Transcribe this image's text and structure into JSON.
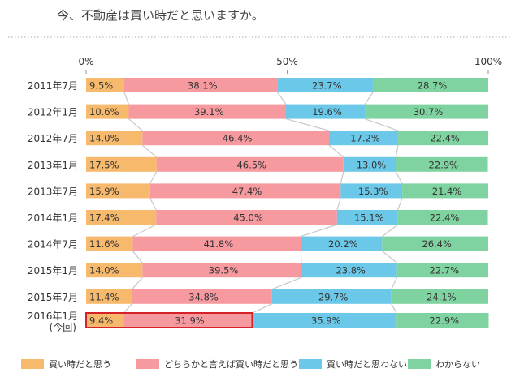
{
  "chart_data": {
    "type": "bar",
    "orientation": "horizontal",
    "stacked": true,
    "title": "今、不動産は買い時だと思いますか。",
    "xlim": [
      0,
      100
    ],
    "ticks": [
      "0%",
      "50%",
      "100%"
    ],
    "tick_values": [
      0,
      50,
      100
    ],
    "categories": [
      [
        "2011年7月"
      ],
      [
        "2012年1月"
      ],
      [
        "2012年7月"
      ],
      [
        "2013年1月"
      ],
      [
        "2013年7月"
      ],
      [
        "2014年1月"
      ],
      [
        "2014年7月"
      ],
      [
        "2015年1月"
      ],
      [
        "2015年7月"
      ],
      [
        "2016年1月",
        "(今回)"
      ]
    ],
    "series": [
      {
        "name": "買い時だと思う",
        "color": "#f7b96b",
        "values": [
          9.5,
          10.6,
          14.0,
          17.5,
          15.9,
          17.4,
          11.6,
          14.0,
          11.4,
          9.4
        ]
      },
      {
        "name": "どちらかと言えば買い時だと思う",
        "color": "#f79aa0",
        "values": [
          38.1,
          39.1,
          46.4,
          46.5,
          47.4,
          45.0,
          41.8,
          39.5,
          34.8,
          31.9
        ]
      },
      {
        "name": "買い時だと思わない",
        "color": "#6cc8e8",
        "values": [
          23.7,
          19.6,
          17.2,
          13.0,
          15.3,
          15.1,
          20.2,
          23.8,
          29.7,
          35.9
        ]
      },
      {
        "name": "わからない",
        "color": "#7fd3a0",
        "values": [
          28.7,
          30.7,
          22.4,
          22.9,
          21.4,
          22.4,
          26.4,
          22.7,
          24.1,
          22.9
        ]
      }
    ],
    "highlight": {
      "category_index": 9,
      "series": [
        0,
        1
      ],
      "color": "#d6202a"
    },
    "connector_color": "#c8c8c8",
    "dotted_rule_color": "#aaaaaa"
  }
}
